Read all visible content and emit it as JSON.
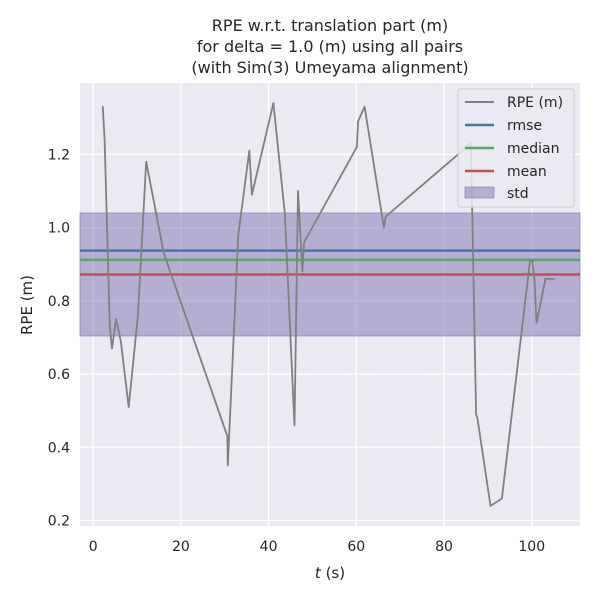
{
  "chart_data": {
    "type": "line",
    "title_lines": [
      "RPE w.r.t. translation part (m)",
      "for delta = 1.0 (m) using all pairs",
      "(with Sim(3) Umeyama alignment)"
    ],
    "xlabel_italic": "t",
    "xlabel_unit": " (s)",
    "ylabel": "RPE (m)",
    "xlim": [
      -3,
      111
    ],
    "ylim": [
      0.185,
      1.395
    ],
    "xticks": [
      0,
      20,
      40,
      60,
      80,
      100
    ],
    "yticks": [
      0.2,
      0.4,
      0.6,
      0.8,
      1.0,
      1.2
    ],
    "ytick_labels": [
      "0.2",
      "0.4",
      "0.6",
      "0.8",
      "1.0",
      "1.2"
    ],
    "grid": true,
    "legend_position": "top-right",
    "series": [
      {
        "name": "RPE (m)",
        "color": "#808080",
        "x": [
          2.2,
          2.6,
          3.8,
          4.3,
          5.2,
          6.3,
          8.1,
          10.2,
          12.1,
          16.1,
          30.6,
          30.7,
          33.1,
          35.6,
          36.2,
          41.1,
          43.7,
          45.9,
          46.7,
          47.7,
          48.1,
          60.1,
          60.4,
          61.5,
          61.9,
          66.3,
          66.7,
          86.1,
          86.4,
          87.3,
          87.6,
          90.6,
          93.2,
          99.6,
          100.1,
          100.6,
          101.1,
          103.1,
          105.1
        ],
        "y": [
          1.33,
          1.24,
          0.73,
          0.67,
          0.75,
          0.69,
          0.51,
          0.76,
          1.18,
          0.93,
          0.43,
          0.35,
          0.98,
          1.21,
          1.09,
          1.34,
          1.04,
          0.46,
          1.1,
          0.88,
          0.96,
          1.22,
          1.29,
          1.32,
          1.33,
          1.0,
          1.03,
          1.23,
          1.06,
          0.49,
          0.48,
          0.24,
          0.26,
          0.91,
          0.91,
          0.86,
          0.74,
          0.86,
          0.86
        ]
      }
    ],
    "stats": {
      "rmse": 0.937,
      "median": 0.912,
      "mean": 0.872,
      "std": 0.168
    },
    "legend": {
      "rpe": "RPE (m)",
      "rmse": "rmse",
      "median": "median",
      "mean": "mean",
      "std": "std"
    },
    "colors": {
      "rpe": "#808080",
      "rmse": "#4c72b0",
      "median": "#55a868",
      "mean": "#c44e52",
      "std": "#8172b2",
      "axes_bg": "#eaeaf2",
      "grid": "#ffffff"
    }
  }
}
